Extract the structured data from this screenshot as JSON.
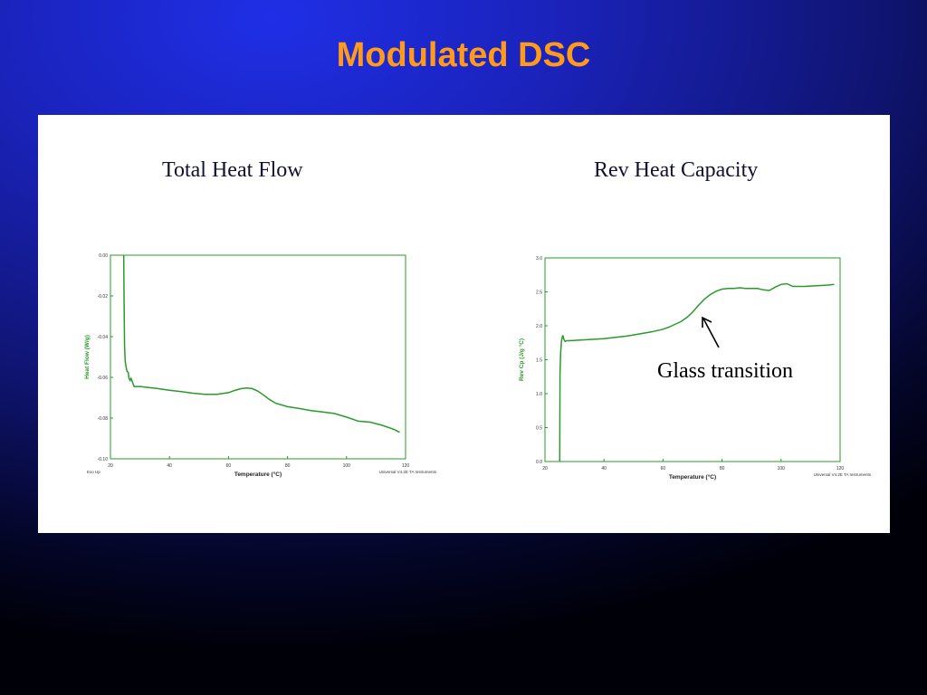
{
  "slide": {
    "title": "Modulated DSC"
  },
  "annotation": {
    "glass_transition": "Glass transition"
  },
  "chart_data": [
    {
      "type": "line",
      "title": "Total Heat Flow",
      "xlabel": "Temperature (°C)",
      "ylabel": "Heat Flow (W/g)",
      "footer_left": "Exo Up",
      "footer_right": "Universal V4.2E TA Instruments",
      "xlim": [
        20,
        120
      ],
      "ylim": [
        -0.1,
        0.0
      ],
      "xticks": [
        20,
        40,
        60,
        80,
        100,
        120
      ],
      "yticks": [
        0.0,
        -0.02,
        -0.04,
        -0.06,
        -0.08,
        -0.1
      ],
      "ytick_labels": [
        "0.00",
        "-0.02",
        "-0.04",
        "-0.06",
        "-0.08",
        "-0.10"
      ],
      "line_color": "#2a9a2a",
      "series": [
        {
          "x": [
            24.5,
            24.6,
            24.8,
            25.0,
            25.3,
            25.6,
            26.0,
            26.3,
            26.7,
            27.0,
            28,
            30,
            33,
            36,
            40,
            44,
            48,
            52,
            56,
            60,
            62,
            64,
            66,
            68,
            70,
            72,
            74,
            76,
            80,
            84,
            88,
            92,
            96,
            100,
            104,
            108,
            112,
            116,
            118
          ],
          "y": [
            0.0,
            -0.02,
            -0.045,
            -0.052,
            -0.055,
            -0.057,
            -0.0575,
            -0.0605,
            -0.0615,
            -0.0605,
            -0.0645,
            -0.0645,
            -0.065,
            -0.0655,
            -0.0663,
            -0.067,
            -0.0678,
            -0.0683,
            -0.0683,
            -0.0675,
            -0.0665,
            -0.0656,
            -0.0652,
            -0.0655,
            -0.0668,
            -0.0688,
            -0.071,
            -0.0727,
            -0.0744,
            -0.0753,
            -0.0763,
            -0.077,
            -0.0778,
            -0.0795,
            -0.0815,
            -0.082,
            -0.0835,
            -0.0855,
            -0.087
          ]
        }
      ]
    },
    {
      "type": "line",
      "title": "Rev Heat Capacity",
      "xlabel": "Temperature (°C)",
      "ylabel": "Rev Cp (J/g °C)",
      "footer_right": "Universal V4.2E TA Instruments",
      "xlim": [
        20,
        120
      ],
      "ylim": [
        0.0,
        3.0
      ],
      "xticks": [
        20,
        40,
        60,
        80,
        100,
        120
      ],
      "yticks": [
        0.0,
        0.5,
        1.0,
        1.5,
        2.0,
        2.5,
        3.0
      ],
      "ytick_labels": [
        "0.0",
        "0.5",
        "1.0",
        "1.5",
        "2.0",
        "2.5",
        "3.0"
      ],
      "line_color": "#2a9a2a",
      "series": [
        {
          "x": [
            25.0,
            25.1,
            25.3,
            25.6,
            26.0,
            26.4,
            26.8,
            27.3,
            28,
            32,
            36,
            40,
            44,
            48,
            52,
            56,
            60,
            62,
            64,
            66,
            68,
            70,
            72,
            74,
            76,
            78,
            80,
            82,
            84,
            86,
            88,
            90,
            92,
            94,
            96,
            98,
            100,
            102,
            104,
            108,
            112,
            116,
            118
          ],
          "y": [
            0.0,
            1.3,
            1.6,
            1.78,
            1.86,
            1.8,
            1.77,
            1.78,
            1.78,
            1.79,
            1.8,
            1.81,
            1.83,
            1.85,
            1.88,
            1.91,
            1.95,
            1.98,
            2.02,
            2.06,
            2.12,
            2.2,
            2.3,
            2.39,
            2.46,
            2.51,
            2.54,
            2.55,
            2.55,
            2.56,
            2.55,
            2.55,
            2.55,
            2.53,
            2.52,
            2.57,
            2.61,
            2.62,
            2.58,
            2.58,
            2.59,
            2.6,
            2.61
          ]
        }
      ]
    }
  ]
}
